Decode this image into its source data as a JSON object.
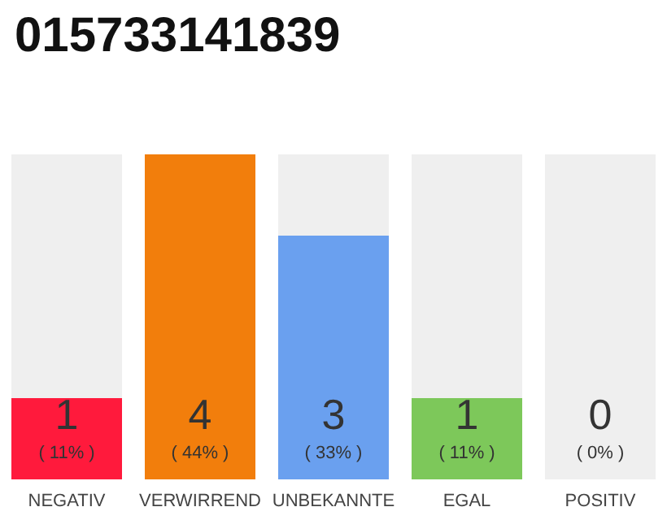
{
  "chart_data": {
    "type": "bar",
    "title": "015733141839",
    "categories": [
      "NEGATIV",
      "VERWIRREND",
      "UNBEKANNTE",
      "EGAL",
      "POSITIV"
    ],
    "values": [
      1,
      4,
      3,
      1,
      0
    ],
    "colors": [
      "#ff1a3c",
      "#f27e0c",
      "#6aa0ef",
      "#7dc85a",
      "#d0d0d0"
    ],
    "value_labels": [
      "1\n( 11% )",
      "4\n( 44% )",
      "3\n( 33% )",
      "1\n( 11% )",
      "0\n( 0% )"
    ]
  }
}
